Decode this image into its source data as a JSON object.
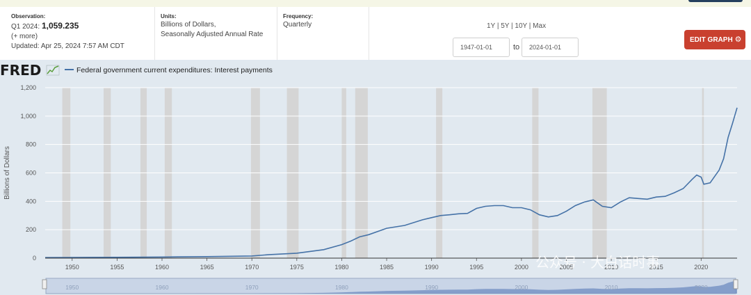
{
  "observation": {
    "label": "Observation:",
    "period": "Q1 2024:",
    "value": "1,059.235",
    "more": "(+ more)",
    "updated": "Updated: Apr 25, 2024 7:57 AM CDT"
  },
  "units": {
    "label": "Units:",
    "line1": "Billions of Dollars,",
    "line2": "Seasonally Adjusted Annual Rate"
  },
  "frequency": {
    "label": "Frequency:",
    "value": "Quarterly"
  },
  "range_links": "1Y | 5Y | 10Y | Max",
  "date_from": "1947-01-01",
  "to_label": "to",
  "date_to": "2024-01-01",
  "edit_button": "EDIT GRAPH",
  "logo": "FRED",
  "watermark": "公众号 · 大白话时事",
  "colors": {
    "line": "#4572a7",
    "recession": "#d5d5d5",
    "background": "#e1e9f0",
    "edit_button": "#c9402f"
  },
  "chart_data": {
    "type": "line",
    "title": "",
    "series": [
      {
        "name": "Federal government current expenditures: Interest payments",
        "x": [
          1947,
          1950,
          1955,
          1960,
          1965,
          1970,
          1972,
          1975,
          1978,
          1980,
          1981,
          1982,
          1983,
          1985,
          1987,
          1989,
          1990,
          1991,
          1992,
          1993,
          1994,
          1995,
          1996,
          1997,
          1998,
          1999,
          2000,
          2001,
          2002,
          2003,
          2004,
          2005,
          2006,
          2007,
          2008,
          2009,
          2010,
          2011,
          2012,
          2013,
          2014,
          2015,
          2016,
          2017,
          2018,
          2019,
          2019.5,
          2020,
          2020.3,
          2021,
          2022,
          2022.5,
          2023,
          2023.5,
          2024
        ],
        "values": [
          4,
          5,
          6,
          8,
          11,
          15,
          25,
          35,
          60,
          95,
          120,
          150,
          165,
          210,
          230,
          270,
          285,
          300,
          305,
          312,
          315,
          350,
          365,
          370,
          370,
          355,
          355,
          340,
          305,
          290,
          300,
          330,
          370,
          395,
          410,
          365,
          355,
          395,
          425,
          420,
          415,
          430,
          435,
          460,
          490,
          555,
          585,
          570,
          520,
          530,
          620,
          700,
          850,
          950,
          1059
        ]
      }
    ],
    "recessions": [
      [
        1948.9,
        1949.8
      ],
      [
        1953.5,
        1954.3
      ],
      [
        1957.6,
        1958.3
      ],
      [
        1960.3,
        1961.1
      ],
      [
        1969.9,
        1970.9
      ],
      [
        1973.9,
        1975.2
      ],
      [
        1980.0,
        1980.5
      ],
      [
        1981.5,
        1982.9
      ],
      [
        1990.5,
        1991.2
      ],
      [
        2001.2,
        2001.9
      ],
      [
        2007.9,
        2009.5
      ],
      [
        2020.1,
        2020.3
      ]
    ],
    "xlabel": "",
    "ylabel": "Billions of Dollars",
    "xlim": [
      1947,
      2024
    ],
    "ylim": [
      0,
      1200
    ],
    "x_ticks": [
      "1950",
      "1955",
      "1960",
      "1965",
      "1970",
      "1975",
      "1980",
      "1985",
      "1990",
      "1995",
      "2000",
      "2005",
      "2010",
      "2015",
      "2020"
    ],
    "y_ticks": [
      "0",
      "200",
      "400",
      "600",
      "800",
      "1,000",
      "1,200"
    ],
    "navigator_ticks": [
      "1950",
      "1960",
      "1970",
      "1980",
      "1990",
      "2000",
      "2010",
      "2020"
    ],
    "grid": true,
    "legend": "top-left"
  }
}
